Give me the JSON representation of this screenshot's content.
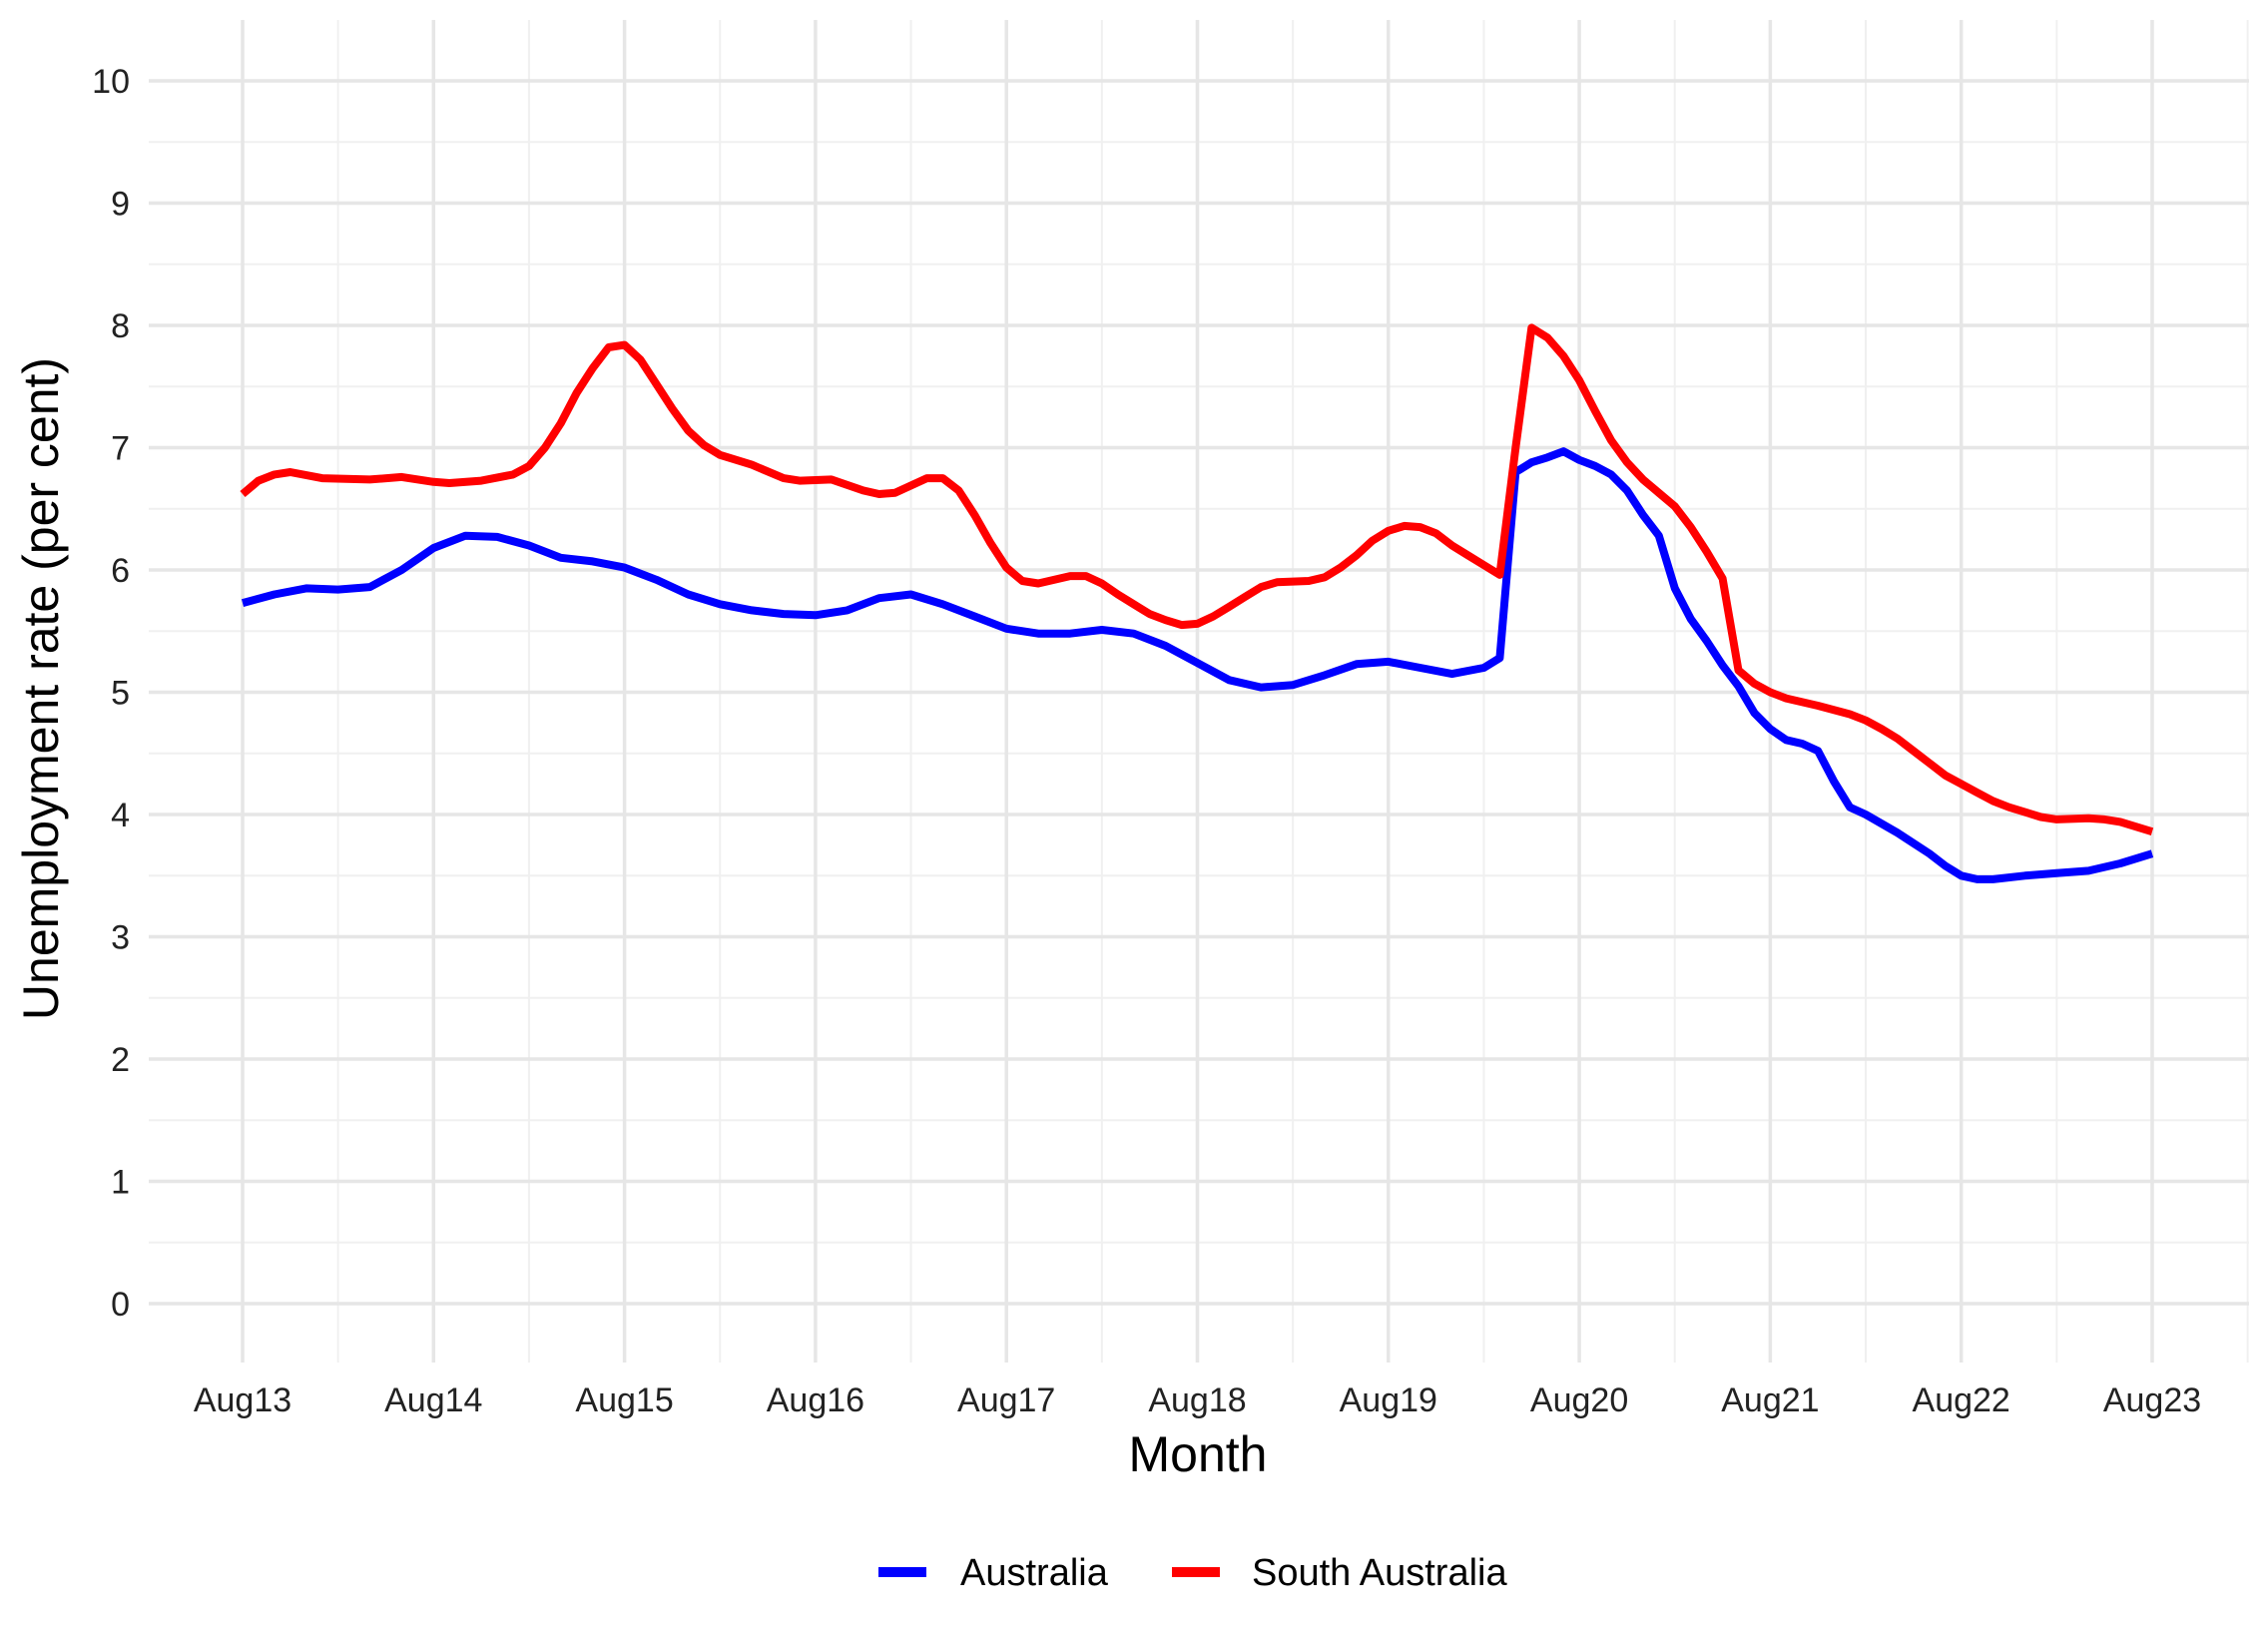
{
  "chart_data": {
    "type": "line",
    "title": "",
    "xlabel": "Month",
    "ylabel": "Unemployment rate (per cent)",
    "x_unit": "months since Aug 2013",
    "xlim": [
      0,
      120
    ],
    "ylim": [
      0,
      10
    ],
    "grid": true,
    "legend_position": "bottom",
    "x_ticks": [
      {
        "m": 0,
        "label": "Aug13"
      },
      {
        "m": 12,
        "label": "Aug14"
      },
      {
        "m": 24,
        "label": "Aug15"
      },
      {
        "m": 36,
        "label": "Aug16"
      },
      {
        "m": 48,
        "label": "Aug17"
      },
      {
        "m": 60,
        "label": "Aug18"
      },
      {
        "m": 72,
        "label": "Aug19"
      },
      {
        "m": 84,
        "label": "Aug20"
      },
      {
        "m": 96,
        "label": "Aug21"
      },
      {
        "m": 108,
        "label": "Aug22"
      },
      {
        "m": 120,
        "label": "Aug23"
      }
    ],
    "y_ticks": [
      "0",
      "1",
      "2",
      "3",
      "4",
      "5",
      "6",
      "7",
      "8",
      "9",
      "10"
    ],
    "series": [
      {
        "name": "Australia",
        "color": "#0000ff",
        "points": [
          [
            0,
            5.73
          ],
          [
            2,
            5.8
          ],
          [
            4,
            5.85
          ],
          [
            6,
            5.84
          ],
          [
            8,
            5.86
          ],
          [
            10,
            6.0
          ],
          [
            12,
            6.18
          ],
          [
            14,
            6.28
          ],
          [
            16,
            6.27
          ],
          [
            18,
            6.2
          ],
          [
            20,
            6.1
          ],
          [
            22,
            6.07
          ],
          [
            24,
            6.02
          ],
          [
            26,
            5.92
          ],
          [
            28,
            5.8
          ],
          [
            30,
            5.72
          ],
          [
            32,
            5.67
          ],
          [
            34,
            5.64
          ],
          [
            36,
            5.63
          ],
          [
            38,
            5.67
          ],
          [
            40,
            5.77
          ],
          [
            42,
            5.8
          ],
          [
            44,
            5.72
          ],
          [
            46,
            5.62
          ],
          [
            48,
            5.52
          ],
          [
            50,
            5.48
          ],
          [
            52,
            5.48
          ],
          [
            54,
            5.51
          ],
          [
            56,
            5.48
          ],
          [
            58,
            5.38
          ],
          [
            60,
            5.24
          ],
          [
            62,
            5.1
          ],
          [
            64,
            5.04
          ],
          [
            66,
            5.06
          ],
          [
            68,
            5.14
          ],
          [
            70,
            5.23
          ],
          [
            72,
            5.25
          ],
          [
            74,
            5.2
          ],
          [
            76,
            5.15
          ],
          [
            78,
            5.2
          ],
          [
            79,
            5.28
          ],
          [
            80,
            6.8
          ],
          [
            81,
            6.88
          ],
          [
            82,
            6.92
          ],
          [
            83,
            6.97
          ],
          [
            84,
            6.9
          ],
          [
            85,
            6.85
          ],
          [
            86,
            6.78
          ],
          [
            87,
            6.65
          ],
          [
            88,
            6.45
          ],
          [
            89,
            6.28
          ],
          [
            90,
            5.85
          ],
          [
            91,
            5.6
          ],
          [
            92,
            5.42
          ],
          [
            93,
            5.22
          ],
          [
            94,
            5.05
          ],
          [
            95,
            4.83
          ],
          [
            96,
            4.7
          ],
          [
            97,
            4.61
          ],
          [
            98,
            4.58
          ],
          [
            99,
            4.52
          ],
          [
            100,
            4.27
          ],
          [
            101,
            4.06
          ],
          [
            102,
            4.0
          ],
          [
            104,
            3.85
          ],
          [
            106,
            3.68
          ],
          [
            107,
            3.58
          ],
          [
            108,
            3.5
          ],
          [
            109,
            3.47
          ],
          [
            110,
            3.47
          ],
          [
            112,
            3.5
          ],
          [
            114,
            3.52
          ],
          [
            116,
            3.54
          ],
          [
            118,
            3.6
          ],
          [
            120,
            3.68
          ]
        ]
      },
      {
        "name": "South Australia",
        "color": "#ff0000",
        "points": [
          [
            0,
            6.62
          ],
          [
            1,
            6.73
          ],
          [
            2,
            6.78
          ],
          [
            3,
            6.8
          ],
          [
            5,
            6.75
          ],
          [
            8,
            6.74
          ],
          [
            10,
            6.76
          ],
          [
            12,
            6.72
          ],
          [
            13,
            6.71
          ],
          [
            15,
            6.73
          ],
          [
            17,
            6.78
          ],
          [
            18,
            6.85
          ],
          [
            19,
            7.0
          ],
          [
            20,
            7.2
          ],
          [
            21,
            7.45
          ],
          [
            22,
            7.65
          ],
          [
            23,
            7.82
          ],
          [
            24,
            7.84
          ],
          [
            25,
            7.72
          ],
          [
            26,
            7.52
          ],
          [
            27,
            7.32
          ],
          [
            28,
            7.14
          ],
          [
            29,
            7.02
          ],
          [
            30,
            6.94
          ],
          [
            32,
            6.86
          ],
          [
            34,
            6.75
          ],
          [
            35,
            6.73
          ],
          [
            37,
            6.74
          ],
          [
            39,
            6.65
          ],
          [
            40,
            6.62
          ],
          [
            41,
            6.63
          ],
          [
            43,
            6.75
          ],
          [
            44,
            6.75
          ],
          [
            45,
            6.65
          ],
          [
            46,
            6.45
          ],
          [
            47,
            6.22
          ],
          [
            48,
            6.02
          ],
          [
            49,
            5.91
          ],
          [
            50,
            5.89
          ],
          [
            52,
            5.95
          ],
          [
            53,
            5.95
          ],
          [
            54,
            5.89
          ],
          [
            55,
            5.8
          ],
          [
            56,
            5.72
          ],
          [
            57,
            5.64
          ],
          [
            58,
            5.59
          ],
          [
            59,
            5.55
          ],
          [
            60,
            5.56
          ],
          [
            61,
            5.62
          ],
          [
            62,
            5.7
          ],
          [
            63,
            5.78
          ],
          [
            64,
            5.86
          ],
          [
            65,
            5.9
          ],
          [
            67,
            5.91
          ],
          [
            68,
            5.94
          ],
          [
            69,
            6.02
          ],
          [
            70,
            6.12
          ],
          [
            71,
            6.24
          ],
          [
            72,
            6.32
          ],
          [
            73,
            6.36
          ],
          [
            74,
            6.35
          ],
          [
            75,
            6.3
          ],
          [
            76,
            6.2
          ],
          [
            77,
            6.12
          ],
          [
            78,
            6.04
          ],
          [
            79,
            5.96
          ],
          [
            80,
            7.0
          ],
          [
            81,
            7.98
          ],
          [
            82,
            7.9
          ],
          [
            83,
            7.75
          ],
          [
            84,
            7.55
          ],
          [
            85,
            7.3
          ],
          [
            86,
            7.06
          ],
          [
            87,
            6.88
          ],
          [
            88,
            6.74
          ],
          [
            89,
            6.63
          ],
          [
            90,
            6.52
          ],
          [
            91,
            6.35
          ],
          [
            92,
            6.15
          ],
          [
            93,
            5.93
          ],
          [
            94,
            5.18
          ],
          [
            95,
            5.07
          ],
          [
            96,
            5.0
          ],
          [
            97,
            4.95
          ],
          [
            99,
            4.89
          ],
          [
            101,
            4.82
          ],
          [
            102,
            4.77
          ],
          [
            103,
            4.7
          ],
          [
            104,
            4.62
          ],
          [
            105,
            4.52
          ],
          [
            106,
            4.42
          ],
          [
            107,
            4.32
          ],
          [
            108,
            4.25
          ],
          [
            109,
            4.18
          ],
          [
            110,
            4.11
          ],
          [
            111,
            4.06
          ],
          [
            112,
            4.02
          ],
          [
            113,
            3.98
          ],
          [
            114,
            3.96
          ],
          [
            116,
            3.97
          ],
          [
            117,
            3.96
          ],
          [
            118,
            3.94
          ],
          [
            119,
            3.9
          ],
          [
            120,
            3.86
          ]
        ]
      }
    ]
  }
}
